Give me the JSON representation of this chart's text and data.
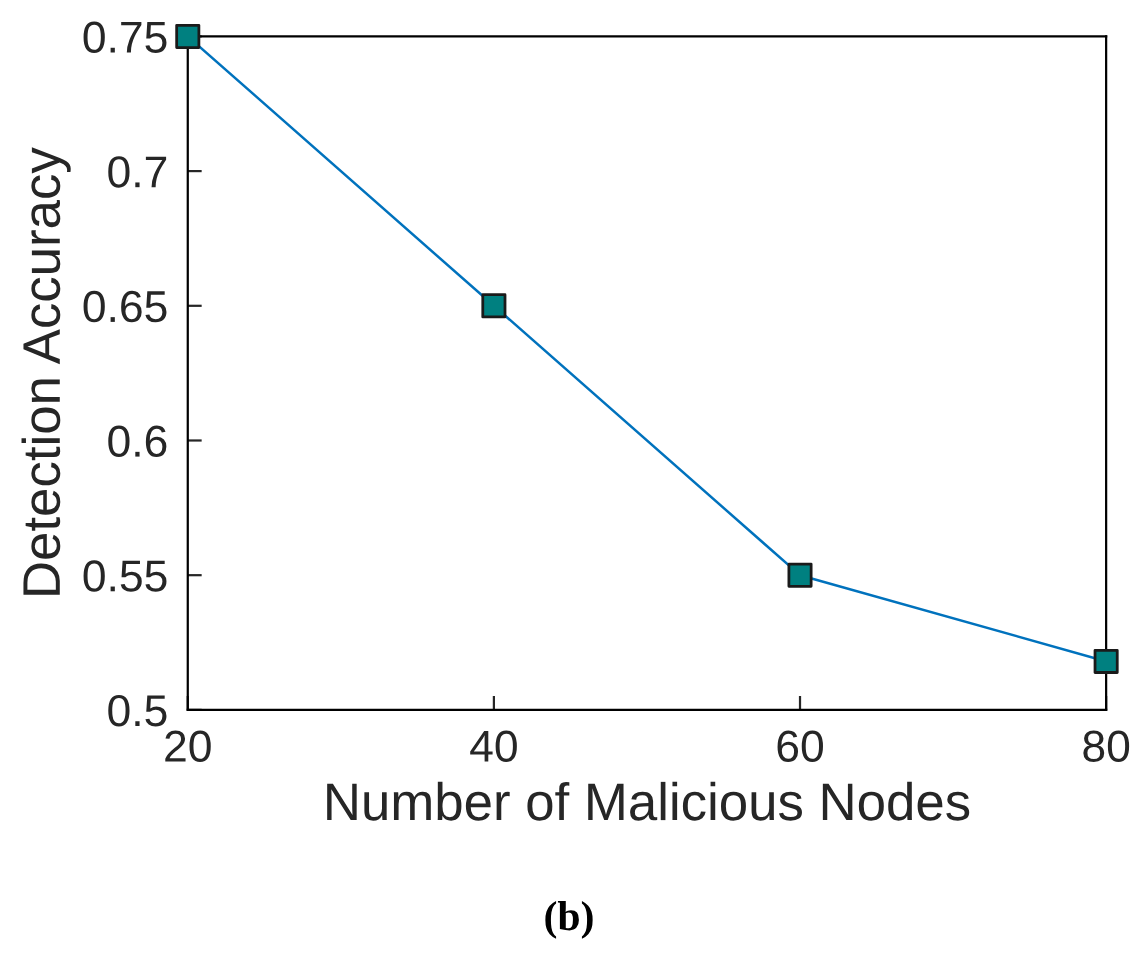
{
  "chart_data": {
    "type": "line",
    "xlabel": "Number of Malicious Nodes",
    "ylabel": "Detection Accuracy",
    "x": [
      20,
      40,
      60,
      80
    ],
    "series": [
      {
        "color": "#0072bd",
        "colors": [
          "#008080",
          "#008080",
          "#008080",
          "#008080"
        ],
        "values": [
          0.75,
          0.65,
          0.55,
          0.518
        ]
      }
    ],
    "xlim": [
      20,
      80
    ],
    "xticks": [
      20,
      40,
      60,
      80
    ],
    "ylim": [
      0.5,
      0.75
    ],
    "yticks": [
      0.5,
      0.55,
      0.6,
      0.65,
      0.7,
      0.75
    ],
    "marker": "square",
    "line_style": "solid",
    "grid": false,
    "legend": false,
    "annotations": [
      "(b)"
    ]
  }
}
